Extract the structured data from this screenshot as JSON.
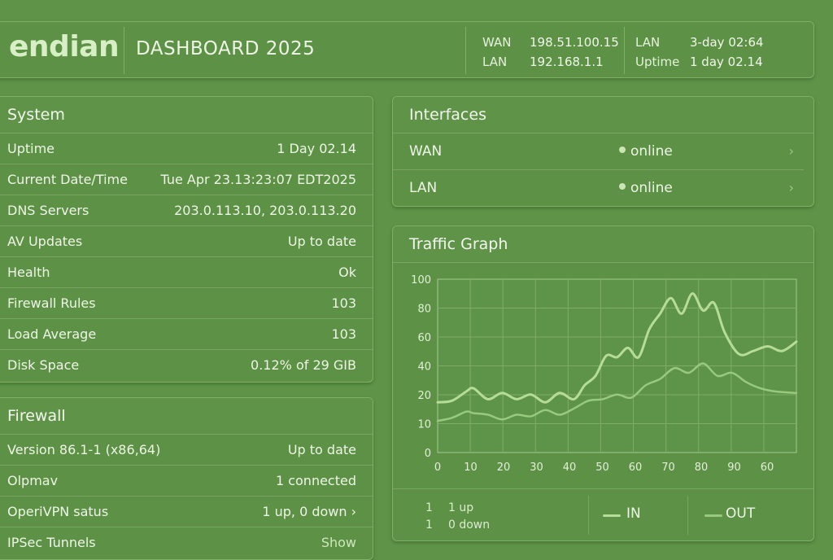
{
  "header": {
    "logo": "endian",
    "title": "DASHBOARD 2025",
    "wan_label": "WAN",
    "wan_ip": "198.51.100.15",
    "lan_label": "LAN",
    "lan_ip": "192.168.1.1",
    "lan2_label": "LAN",
    "lan2_value": "3-day 02:64",
    "uptime_label": "Uptime",
    "uptime_value": "1 day 02.14"
  },
  "system": {
    "title": "System",
    "rows": [
      {
        "label": "Uptime",
        "value": "1 Day 02.14"
      },
      {
        "label": "Current Date/Time",
        "value": "Tue Apr 23.13:23:07 EDT2025"
      },
      {
        "label": "DNS Servers",
        "value": "203.0.113.10, 203.0.113.20"
      },
      {
        "label": "AV Updates",
        "value": "Up to date"
      },
      {
        "label": "Health",
        "value": "Ok"
      },
      {
        "label": "Firewall Rules",
        "value": "103"
      },
      {
        "label": "Load Average",
        "value": "103"
      },
      {
        "label": "Disk Space",
        "value": "0.12% of 29 GIB"
      }
    ]
  },
  "firewall": {
    "title": "Firewall",
    "rows": [
      {
        "label": "Version   86.1-1 (x86,64)",
        "value": "Up to date"
      },
      {
        "label": "Olpmav",
        "value": "1 connected"
      },
      {
        "label": "OperiVPN satus",
        "value": "1 up, 0 down ›"
      },
      {
        "label": "IPSec Tunnels",
        "value": "Show"
      }
    ]
  },
  "interfaces": {
    "title": "Interfaces",
    "items": [
      {
        "name": "WAN",
        "status": "online"
      },
      {
        "name": "LAN",
        "status": "online"
      }
    ]
  },
  "traffic": {
    "title": "Traffic Graph",
    "legend": {
      "row1_num": "1",
      "row1_text": "1 up",
      "row2_num": "1",
      "row2_text": "0 down",
      "in_label": "IN",
      "out_label": "OUT"
    }
  },
  "colors": {
    "background": "#5f9448",
    "panel": "#5c9146",
    "in_line": "#b5dc98",
    "out_line": "#98c97e"
  },
  "chart_data": {
    "type": "line",
    "x_tick_labels": [
      "0",
      "10",
      "20",
      "30",
      "40",
      "50",
      "60",
      "70",
      "80",
      "90",
      "60"
    ],
    "y_tick_labels": [
      "100",
      "80",
      "60",
      "40",
      "20",
      "10",
      "0"
    ],
    "series": [
      {
        "name": "IN",
        "x": [
          0,
          4,
          8,
          10,
          14,
          18,
          22,
          26,
          30,
          34,
          38,
          41,
          44,
          47,
          50,
          53,
          56,
          59,
          62,
          65,
          68,
          71,
          74,
          77,
          80,
          84,
          88,
          92,
          96,
          100
        ],
        "y": [
          25,
          26,
          32,
          34,
          27,
          31,
          27,
          30,
          25,
          31,
          27,
          36,
          42,
          55,
          54,
          60,
          54,
          72,
          82,
          92,
          82,
          95,
          84,
          89,
          70,
          56,
          58,
          61,
          58,
          64
        ]
      },
      {
        "name": "OUT",
        "x": [
          0,
          4,
          8,
          10,
          14,
          18,
          22,
          26,
          30,
          34,
          38,
          42,
          46,
          50,
          54,
          58,
          62,
          66,
          70,
          74,
          78,
          82,
          86,
          90,
          94,
          100
        ],
        "y": [
          13,
          15,
          19,
          18,
          17,
          14,
          17,
          16,
          20,
          17,
          21,
          26,
          27,
          30,
          28,
          36,
          40,
          47,
          44,
          50,
          42,
          44,
          38,
          34,
          32,
          31
        ]
      }
    ],
    "grid": true,
    "legend": "bottom"
  }
}
